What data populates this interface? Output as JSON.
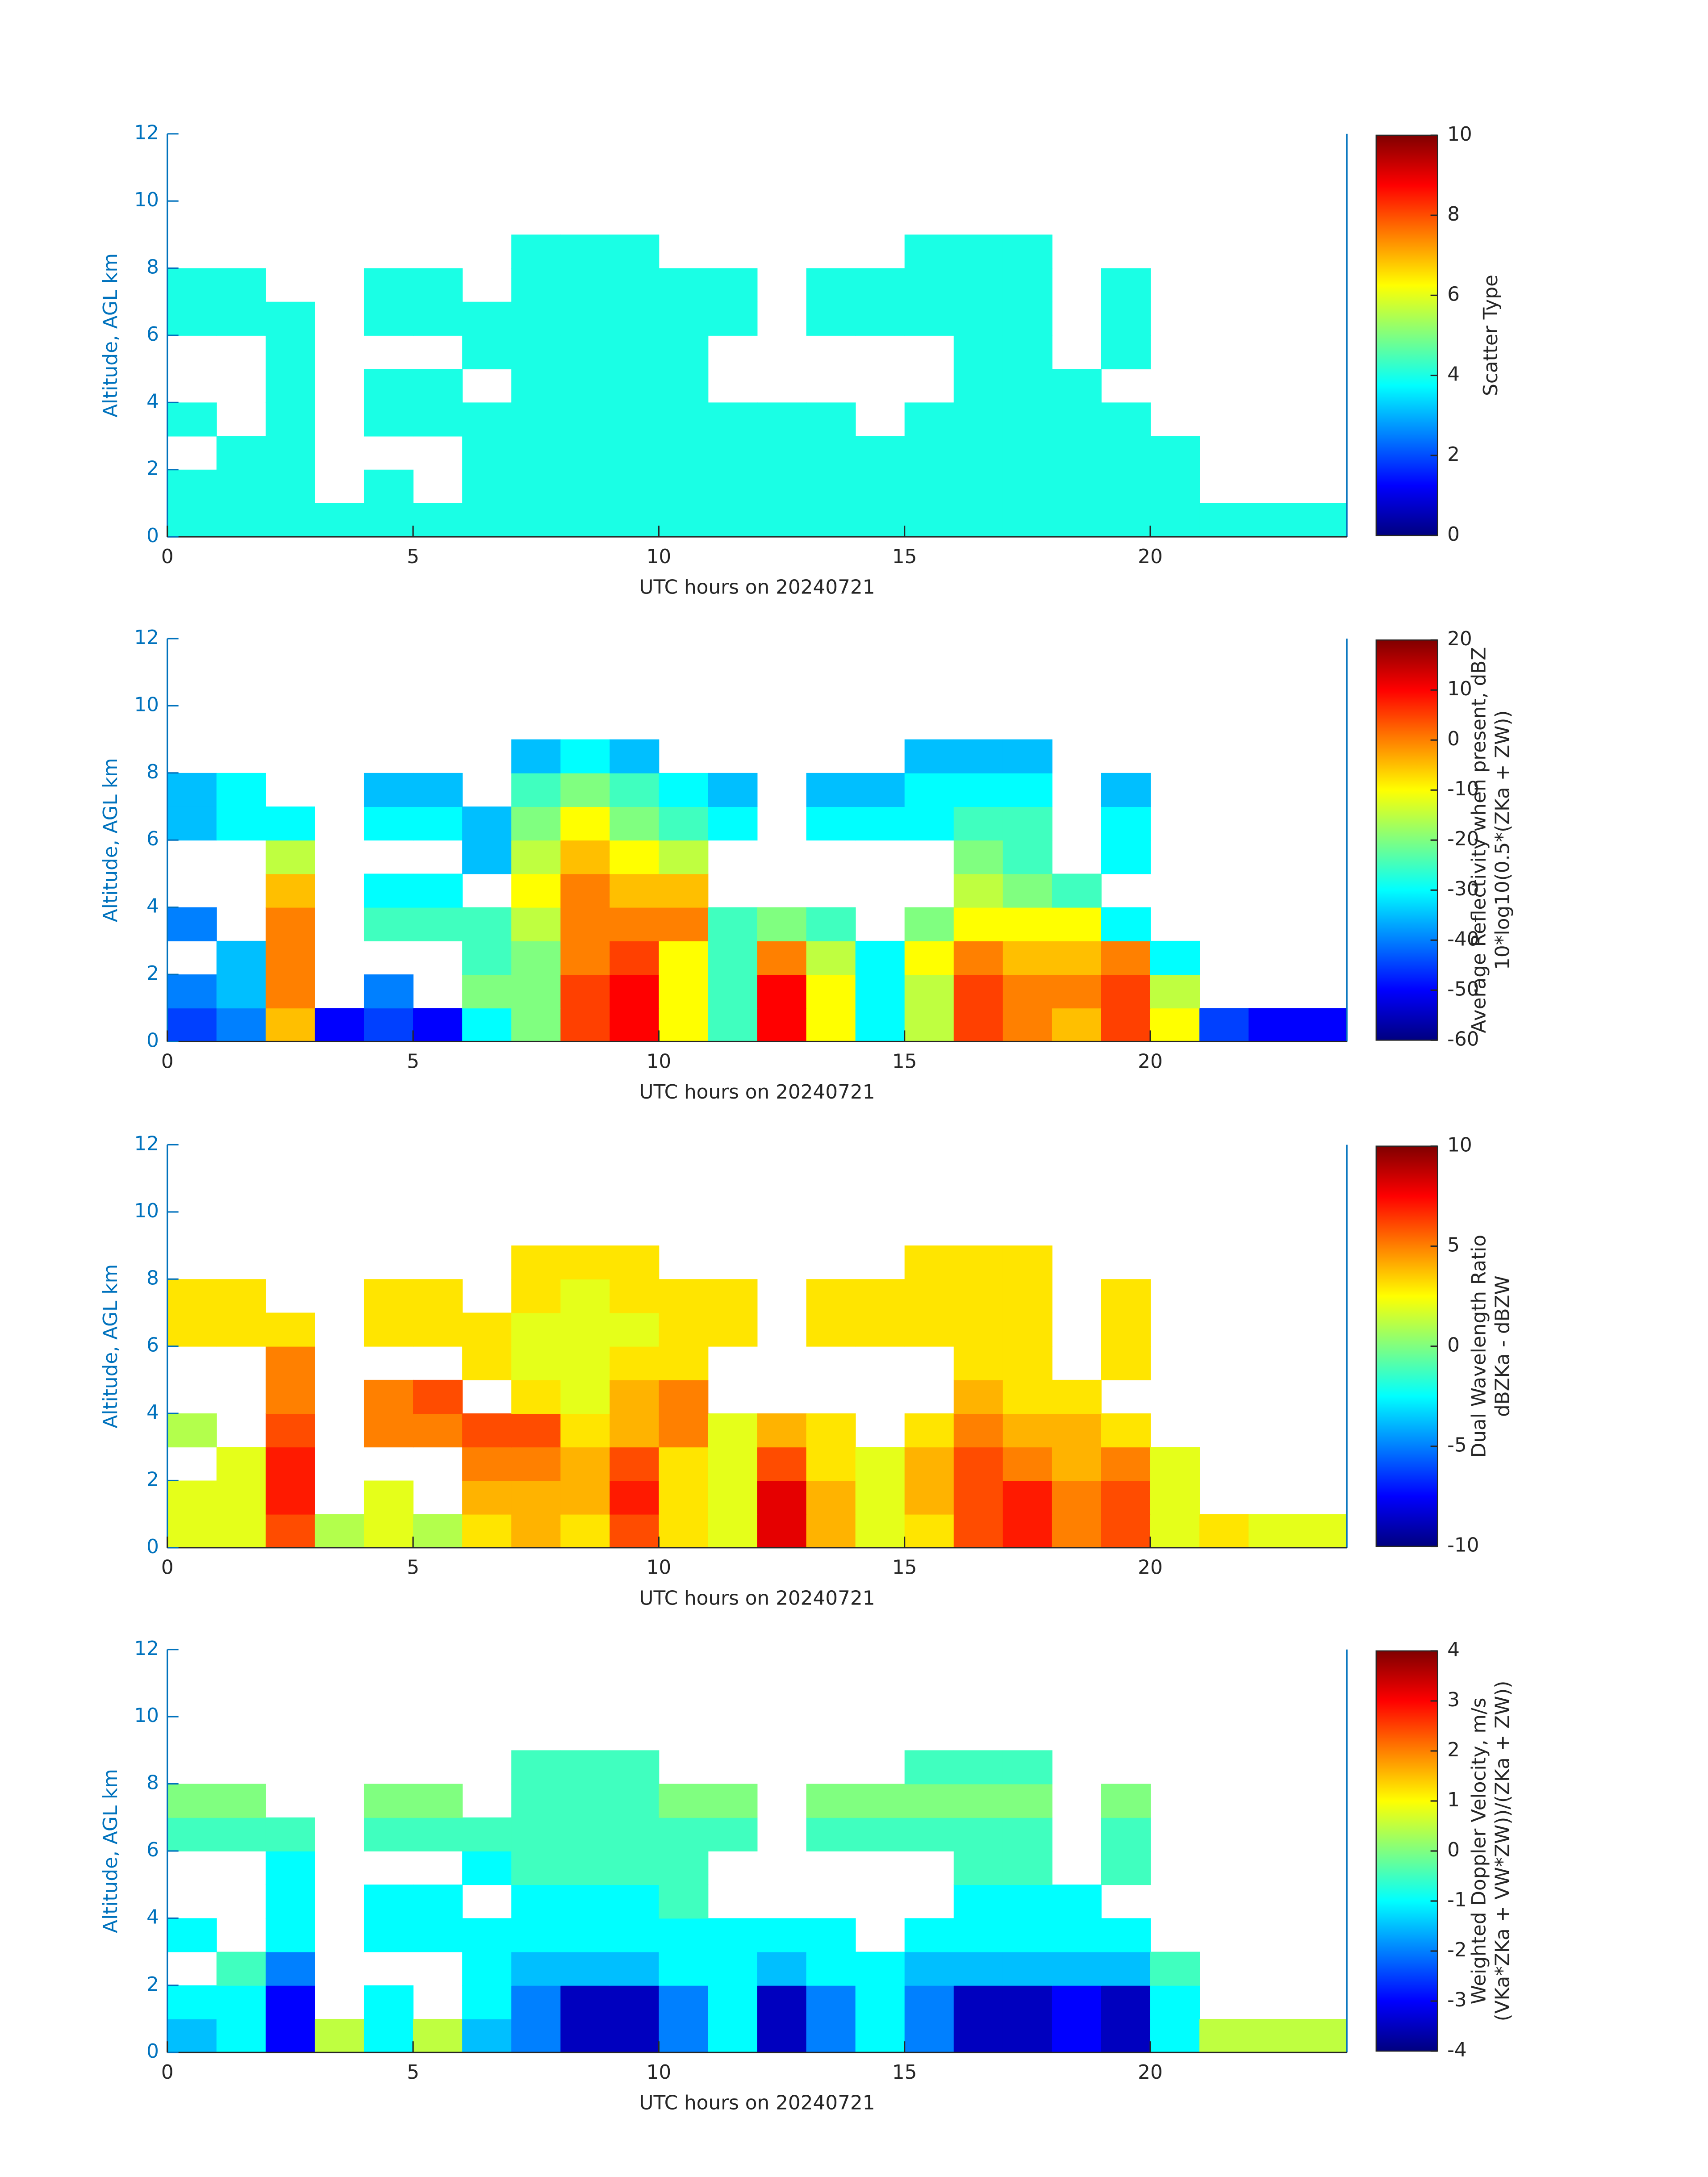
{
  "chart_data": [
    {
      "type": "heatmap",
      "xlabel": "UTC hours on 20240721",
      "ylabel": "Altitude, AGL km",
      "colorbar_label": [
        "Scatter Type"
      ],
      "colormap": "jet",
      "xlim": [
        0,
        24
      ],
      "xticks": [
        0,
        5,
        10,
        15,
        20
      ],
      "ylim": [
        0,
        12
      ],
      "yticks": [
        0,
        2,
        4,
        6,
        8,
        10,
        12
      ],
      "clim": [
        0,
        10
      ],
      "cticks": [
        0,
        2,
        4,
        6,
        8,
        10
      ],
      "xbins": [
        0,
        1,
        2,
        3,
        4,
        5,
        6,
        7,
        8,
        9,
        10,
        11,
        12,
        13,
        14,
        15,
        16,
        17,
        18,
        19,
        20,
        21,
        22,
        23,
        24
      ],
      "ybins": [
        0,
        1,
        2,
        3,
        4,
        5,
        6,
        7,
        8,
        9
      ],
      "z": [
        [
          4,
          4,
          4,
          4,
          4,
          4,
          4,
          4,
          4,
          4,
          4,
          4,
          4,
          4,
          4,
          4,
          4,
          4,
          4,
          4,
          4,
          4,
          4,
          4
        ],
        [
          4,
          4,
          4,
          null,
          4,
          null,
          4,
          4,
          4,
          4,
          4,
          4,
          4,
          4,
          4,
          4,
          4,
          4,
          4,
          4,
          4,
          null,
          null,
          null
        ],
        [
          null,
          4,
          4,
          null,
          null,
          null,
          4,
          4,
          4,
          4,
          4,
          4,
          4,
          4,
          4,
          4,
          4,
          4,
          4,
          4,
          4,
          null,
          null,
          null
        ],
        [
          4,
          null,
          4,
          null,
          4,
          4,
          4,
          4,
          4,
          4,
          4,
          4,
          4,
          4,
          null,
          4,
          4,
          4,
          4,
          4,
          null,
          null,
          null,
          null
        ],
        [
          null,
          null,
          4,
          null,
          4,
          4,
          null,
          4,
          4,
          4,
          4,
          null,
          null,
          null,
          null,
          null,
          4,
          4,
          4,
          null,
          null,
          null,
          null,
          null
        ],
        [
          null,
          null,
          4,
          null,
          null,
          null,
          4,
          4,
          4,
          4,
          4,
          null,
          null,
          null,
          null,
          null,
          4,
          4,
          null,
          4,
          null,
          null,
          null,
          null
        ],
        [
          4,
          4,
          4,
          null,
          4,
          4,
          4,
          4,
          4,
          4,
          4,
          4,
          null,
          4,
          4,
          4,
          4,
          4,
          null,
          4,
          null,
          null,
          null,
          null
        ],
        [
          4,
          4,
          null,
          null,
          4,
          4,
          null,
          4,
          4,
          4,
          4,
          4,
          null,
          4,
          4,
          4,
          4,
          4,
          null,
          4,
          null,
          null,
          null,
          null
        ],
        [
          null,
          null,
          null,
          null,
          null,
          null,
          null,
          4,
          4,
          4,
          null,
          null,
          null,
          null,
          null,
          4,
          4,
          4,
          null,
          null,
          null,
          null,
          null,
          null
        ]
      ]
    },
    {
      "type": "heatmap",
      "xlabel": "UTC hours on 20240721",
      "ylabel": "Altitude, AGL km",
      "colorbar_label": [
        "Average Reflectivity when present, dBZ",
        "10*log10(0.5*(ZKa + ZW))"
      ],
      "colormap": "jet",
      "xlim": [
        0,
        24
      ],
      "xticks": [
        0,
        5,
        10,
        15,
        20
      ],
      "ylim": [
        0,
        12
      ],
      "yticks": [
        0,
        2,
        4,
        6,
        8,
        10,
        12
      ],
      "clim": [
        -60,
        20
      ],
      "cticks": [
        -60,
        -50,
        -40,
        -30,
        -20,
        -10,
        0,
        10,
        20
      ],
      "xbins": [
        0,
        1,
        2,
        3,
        4,
        5,
        6,
        7,
        8,
        9,
        10,
        11,
        12,
        13,
        14,
        15,
        16,
        17,
        18,
        19,
        20,
        21,
        22,
        23,
        24
      ],
      "ybins": [
        0,
        1,
        2,
        3,
        4,
        5,
        6,
        7,
        8,
        9
      ],
      "z": [
        [
          -45,
          -40,
          -5,
          -50,
          -45,
          -50,
          -30,
          -20,
          5,
          10,
          -10,
          -25,
          10,
          -10,
          -30,
          -15,
          5,
          0,
          -5,
          5,
          -10,
          -45,
          -50,
          -50
        ],
        [
          -40,
          -35,
          0,
          null,
          -40,
          null,
          -20,
          -20,
          5,
          10,
          -10,
          -25,
          10,
          -10,
          -30,
          -15,
          5,
          0,
          0,
          5,
          -15,
          null,
          null,
          null
        ],
        [
          null,
          -35,
          0,
          null,
          null,
          null,
          -25,
          -20,
          0,
          5,
          -10,
          -25,
          0,
          -15,
          -30,
          -10,
          0,
          -5,
          -5,
          0,
          -30,
          null,
          null,
          null
        ],
        [
          -40,
          null,
          0,
          null,
          -25,
          -25,
          -25,
          -15,
          0,
          0,
          0,
          -25,
          -20,
          -25,
          null,
          -20,
          -10,
          -10,
          -10,
          -30,
          null,
          null,
          null,
          null
        ],
        [
          null,
          null,
          -5,
          null,
          -30,
          -30,
          null,
          -10,
          0,
          -5,
          -5,
          null,
          null,
          null,
          null,
          null,
          -15,
          -20,
          -25,
          null,
          null,
          null,
          null,
          null
        ],
        [
          null,
          null,
          -15,
          null,
          null,
          null,
          -35,
          -15,
          -5,
          -10,
          -15,
          null,
          null,
          null,
          null,
          null,
          -20,
          -25,
          null,
          -30,
          null,
          null,
          null,
          null
        ],
        [
          -35,
          -30,
          -30,
          null,
          -30,
          -30,
          -35,
          -20,
          -10,
          -20,
          -25,
          -30,
          null,
          -30,
          -30,
          -30,
          -25,
          -25,
          null,
          -30,
          null,
          null,
          null,
          null
        ],
        [
          -35,
          -30,
          null,
          null,
          -35,
          -35,
          null,
          -25,
          -20,
          -25,
          -30,
          -35,
          null,
          -35,
          -35,
          -30,
          -30,
          -30,
          null,
          -35,
          null,
          null,
          null,
          null
        ],
        [
          null,
          null,
          null,
          null,
          null,
          null,
          null,
          -35,
          -30,
          -35,
          null,
          null,
          null,
          null,
          null,
          -35,
          -35,
          -35,
          null,
          null,
          null,
          null,
          null,
          null
        ]
      ]
    },
    {
      "type": "heatmap",
      "xlabel": "UTC hours on 20240721",
      "ylabel": "Altitude, AGL km",
      "colorbar_label": [
        "Dual Wavelength Ratio",
        "dBZKa - dBZW"
      ],
      "colormap": "jet",
      "xlim": [
        0,
        24
      ],
      "xticks": [
        0,
        5,
        10,
        15,
        20
      ],
      "ylim": [
        0,
        12
      ],
      "yticks": [
        0,
        2,
        4,
        6,
        8,
        10,
        12
      ],
      "clim": [
        -10,
        10
      ],
      "cticks": [
        -10,
        -5,
        0,
        5,
        10
      ],
      "xbins": [
        0,
        1,
        2,
        3,
        4,
        5,
        6,
        7,
        8,
        9,
        10,
        11,
        12,
        13,
        14,
        15,
        16,
        17,
        18,
        19,
        20,
        21,
        22,
        23,
        24
      ],
      "ybins": [
        0,
        1,
        2,
        3,
        4,
        5,
        6,
        7,
        8,
        9
      ],
      "z": [
        [
          2,
          2,
          6,
          1,
          2,
          1,
          3,
          4,
          3,
          6,
          3,
          2,
          8,
          4,
          2,
          3,
          6,
          7,
          5,
          6,
          2,
          3,
          2,
          2
        ],
        [
          2,
          2,
          7,
          null,
          2,
          null,
          4,
          4,
          4,
          7,
          3,
          2,
          8,
          4,
          2,
          4,
          6,
          7,
          5,
          6,
          2,
          null,
          null,
          null
        ],
        [
          null,
          2,
          7,
          null,
          null,
          null,
          5,
          5,
          4,
          6,
          3,
          2,
          6,
          3,
          2,
          4,
          6,
          5,
          4,
          5,
          2,
          null,
          null,
          null
        ],
        [
          1,
          null,
          6,
          null,
          5,
          5,
          6,
          6,
          3,
          4,
          5,
          2,
          4,
          3,
          null,
          3,
          5,
          4,
          4,
          3,
          null,
          null,
          null,
          null
        ],
        [
          null,
          null,
          5,
          null,
          5,
          6,
          null,
          3,
          2,
          4,
          5,
          null,
          null,
          null,
          null,
          null,
          4,
          3,
          3,
          null,
          null,
          null,
          null,
          null
        ],
        [
          null,
          null,
          5,
          null,
          null,
          null,
          3,
          2,
          2,
          3,
          3,
          null,
          null,
          null,
          null,
          null,
          3,
          3,
          null,
          3,
          null,
          null,
          null,
          null
        ],
        [
          3,
          3,
          3,
          null,
          3,
          3,
          3,
          2,
          2,
          2,
          3,
          3,
          null,
          3,
          3,
          3,
          3,
          3,
          null,
          3,
          null,
          null,
          null,
          null
        ],
        [
          3,
          3,
          null,
          null,
          3,
          3,
          null,
          3,
          2,
          3,
          3,
          3,
          null,
          3,
          3,
          3,
          3,
          3,
          null,
          3,
          null,
          null,
          null,
          null
        ],
        [
          null,
          null,
          null,
          null,
          null,
          null,
          null,
          3,
          3,
          3,
          null,
          null,
          null,
          null,
          null,
          3,
          3,
          3,
          null,
          null,
          null,
          null,
          null,
          null
        ]
      ]
    },
    {
      "type": "heatmap",
      "xlabel": "UTC hours on 20240721",
      "ylabel": "Altitude, AGL km",
      "colorbar_label": [
        "Weighted Doppler Velocity, m/s",
        "(VKa*ZKa + VW*ZW))/(ZKa + ZW))"
      ],
      "colormap": "jet",
      "xlim": [
        0,
        24
      ],
      "xticks": [
        0,
        5,
        10,
        15,
        20
      ],
      "ylim": [
        0,
        12
      ],
      "yticks": [
        0,
        2,
        4,
        6,
        8,
        10,
        12
      ],
      "clim": [
        -4,
        4
      ],
      "cticks": [
        -4,
        -3,
        -2,
        -1,
        0,
        1,
        2,
        3,
        4
      ],
      "xbins": [
        0,
        1,
        2,
        3,
        4,
        5,
        6,
        7,
        8,
        9,
        10,
        11,
        12,
        13,
        14,
        15,
        16,
        17,
        18,
        19,
        20,
        21,
        22,
        23,
        24
      ],
      "ybins": [
        0,
        1,
        2,
        3,
        4,
        5,
        6,
        7,
        8,
        9
      ],
      "z": [
        [
          -1.5,
          -1,
          -3,
          0.5,
          -1,
          0.5,
          -1.5,
          -2,
          -3.5,
          -3.5,
          -2,
          -1,
          -3.5,
          -2,
          -1,
          -2,
          -3.5,
          -3.5,
          -3,
          -3.5,
          -1,
          0.5,
          0.5,
          0.5
        ],
        [
          -1,
          -1,
          -3,
          null,
          -1,
          null,
          -1,
          -2,
          -3.5,
          -3.5,
          -2,
          -1,
          -3.5,
          -2,
          -1,
          -2,
          -3.5,
          -3.5,
          -3,
          -3.5,
          -1,
          null,
          null,
          null
        ],
        [
          null,
          -0.5,
          -2,
          null,
          null,
          null,
          -1,
          -1.5,
          -1.5,
          -1.5,
          -1,
          -1,
          -1.5,
          -1,
          -1,
          -1.5,
          -1.5,
          -1.5,
          -1.5,
          -1.5,
          -0.5,
          null,
          null,
          null
        ],
        [
          -1,
          null,
          -1,
          null,
          -1,
          -1,
          -1,
          -1,
          -1,
          -1,
          -1,
          -1,
          -1,
          -1,
          null,
          -1,
          -1,
          -1,
          -1,
          -1,
          null,
          null,
          null,
          null
        ],
        [
          null,
          null,
          -1,
          null,
          -1,
          -1,
          null,
          -1,
          -1,
          -1,
          -0.5,
          null,
          null,
          null,
          null,
          null,
          -1,
          -1,
          -1,
          null,
          null,
          null,
          null,
          null
        ],
        [
          null,
          null,
          -1,
          null,
          null,
          null,
          -1,
          -0.5,
          -0.5,
          -0.5,
          -0.5,
          null,
          null,
          null,
          null,
          null,
          -0.5,
          -0.5,
          null,
          -0.5,
          null,
          null,
          null,
          null
        ],
        [
          -0.5,
          -0.5,
          -0.5,
          null,
          -0.5,
          -0.5,
          -0.5,
          -0.5,
          -0.5,
          -0.5,
          -0.5,
          -0.5,
          null,
          -0.5,
          -0.5,
          -0.5,
          -0.5,
          -0.5,
          null,
          -0.5,
          null,
          null,
          null,
          null
        ],
        [
          0,
          0,
          null,
          null,
          0,
          0,
          null,
          -0.5,
          -0.5,
          -0.5,
          0,
          0,
          null,
          0,
          0,
          0,
          0,
          0,
          null,
          0,
          null,
          null,
          null,
          null
        ],
        [
          null,
          null,
          null,
          null,
          null,
          null,
          null,
          -0.5,
          -0.5,
          -0.5,
          null,
          null,
          null,
          null,
          null,
          -0.5,
          -0.5,
          -0.5,
          null,
          null,
          null,
          null,
          null,
          null
        ]
      ]
    }
  ]
}
